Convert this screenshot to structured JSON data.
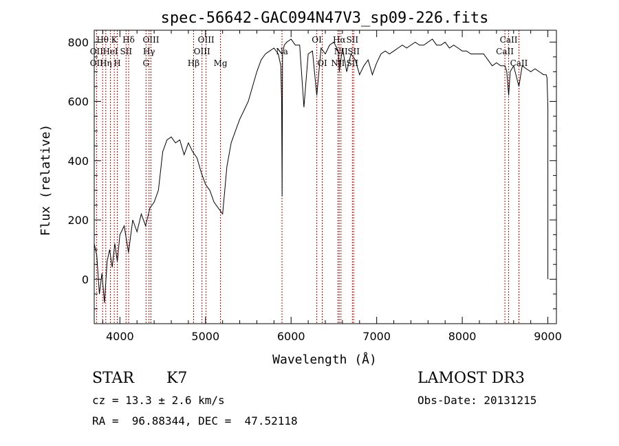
{
  "chart_data": {
    "type": "line",
    "title": "spec-56642-GAC094N47V3_sp09-226.fits",
    "xlabel": "Wavelength (Å)",
    "ylabel": "Flux (relative)",
    "xlim": [
      3700,
      9100
    ],
    "ylim": [
      -150,
      840
    ],
    "x_ticks": [
      4000,
      5000,
      6000,
      7000,
      8000,
      9000
    ],
    "y_ticks": [
      0,
      200,
      400,
      600,
      800
    ],
    "x_tick_labels": [
      "4000",
      "5000",
      "6000",
      "7000",
      "8000",
      "9000"
    ],
    "y_tick_labels": [
      "0",
      "200",
      "400",
      "600",
      "800"
    ],
    "grid": false,
    "series": [
      {
        "name": "flux",
        "x": [
          3700,
          3730,
          3760,
          3790,
          3820,
          3850,
          3880,
          3910,
          3940,
          3970,
          4000,
          4050,
          4100,
          4150,
          4200,
          4250,
          4300,
          4350,
          4400,
          4450,
          4500,
          4550,
          4600,
          4650,
          4700,
          4750,
          4800,
          4850,
          4900,
          4950,
          5000,
          5050,
          5100,
          5150,
          5200,
          5250,
          5300,
          5350,
          5400,
          5450,
          5500,
          5550,
          5600,
          5650,
          5700,
          5750,
          5800,
          5850,
          5880,
          5890,
          5895,
          5900,
          5920,
          5950,
          6000,
          6050,
          6100,
          6150,
          6200,
          6250,
          6300,
          6350,
          6400,
          6450,
          6500,
          6550,
          6563,
          6600,
          6650,
          6700,
          6750,
          6800,
          6850,
          6900,
          6950,
          7000,
          7050,
          7100,
          7150,
          7200,
          7250,
          7300,
          7350,
          7400,
          7450,
          7500,
          7550,
          7600,
          7650,
          7700,
          7750,
          7800,
          7850,
          7900,
          7950,
          8000,
          8050,
          8100,
          8150,
          8200,
          8250,
          8300,
          8350,
          8400,
          8450,
          8500,
          8520,
          8542,
          8560,
          8600,
          8662,
          8700,
          8750,
          8800,
          8850,
          8900,
          8950,
          8980,
          8990,
          9000,
          9000
        ],
        "y": [
          120,
          80,
          -50,
          20,
          -80,
          60,
          100,
          40,
          120,
          60,
          150,
          180,
          90,
          200,
          160,
          220,
          180,
          240,
          260,
          300,
          430,
          470,
          480,
          460,
          470,
          420,
          460,
          430,
          410,
          360,
          320,
          300,
          260,
          240,
          220,
          380,
          460,
          500,
          540,
          570,
          600,
          650,
          700,
          740,
          760,
          770,
          780,
          760,
          720,
          600,
          280,
          760,
          790,
          800,
          810,
          790,
          790,
          580,
          760,
          770,
          620,
          780,
          760,
          790,
          800,
          770,
          700,
          780,
          700,
          760,
          740,
          690,
          720,
          740,
          690,
          730,
          760,
          770,
          760,
          770,
          780,
          790,
          780,
          790,
          800,
          790,
          790,
          800,
          810,
          790,
          790,
          800,
          780,
          790,
          780,
          770,
          770,
          760,
          760,
          760,
          760,
          740,
          720,
          730,
          720,
          720,
          700,
          620,
          700,
          720,
          650,
          720,
          710,
          700,
          710,
          700,
          690,
          690,
          680,
          580,
          0
        ]
      }
    ],
    "lines": [
      {
        "name": "OII",
        "x": 3727
      },
      {
        "name": "Hθ",
        "x": 3798
      },
      {
        "name": "Hη",
        "x": 3835
      },
      {
        "name": "HeI",
        "x": 3889
      },
      {
        "name": "K",
        "x": 3934
      },
      {
        "name": "H",
        "x": 3969
      },
      {
        "name": "SII",
        "x": 4072
      },
      {
        "name": "Hδ",
        "x": 4102
      },
      {
        "name": "G",
        "x": 4305
      },
      {
        "name": "Hγ",
        "x": 4340
      },
      {
        "name": "OIII",
        "x": 4363
      },
      {
        "name": "Hβ",
        "x": 4861
      },
      {
        "name": "OIII",
        "x": 4959
      },
      {
        "name": "OIII",
        "x": 5007
      },
      {
        "name": "Mg",
        "x": 5175
      },
      {
        "name": "Na",
        "x": 5894
      },
      {
        "name": "OI",
        "x": 6300
      },
      {
        "name": "OI",
        "x": 6364
      },
      {
        "name": "NII",
        "x": 6548
      },
      {
        "name": "Hα",
        "x": 6563
      },
      {
        "name": "NII",
        "x": 6583
      },
      {
        "name": "SII",
        "x": 6716
      },
      {
        "name": "SII",
        "x": 6731
      },
      {
        "name": "CaII",
        "x": 8498
      },
      {
        "name": "CaII",
        "x": 8542
      },
      {
        "name": "CaII",
        "x": 8662
      }
    ],
    "labels": [
      {
        "text": "Hθ",
        "x": 3798,
        "row": 0
      },
      {
        "text": "K",
        "x": 3934,
        "row": 0
      },
      {
        "text": "Hδ",
        "x": 4102,
        "row": 0
      },
      {
        "text": "OIII",
        "x": 4363,
        "row": 0
      },
      {
        "text": "OIII",
        "x": 5007,
        "row": 0
      },
      {
        "text": "OI",
        "x": 6300,
        "row": 0
      },
      {
        "text": "Hα",
        "x": 6563,
        "row": 0
      },
      {
        "text": "SII",
        "x": 6716,
        "row": 0
      },
      {
        "text": "CaII",
        "x": 8542,
        "row": 0
      },
      {
        "text": "OII",
        "x": 3727,
        "row": 1
      },
      {
        "text": "HeI",
        "x": 3889,
        "row": 1
      },
      {
        "text": "SII",
        "x": 4072,
        "row": 1
      },
      {
        "text": "Hγ",
        "x": 4340,
        "row": 1
      },
      {
        "text": "OIII",
        "x": 4959,
        "row": 1
      },
      {
        "text": "Na",
        "x": 5894,
        "row": 1
      },
      {
        "text": "NII",
        "x": 6583,
        "row": 1
      },
      {
        "text": "SII",
        "x": 6731,
        "row": 1
      },
      {
        "text": "CaII",
        "x": 8498,
        "row": 1
      },
      {
        "text": "OII",
        "x": 3727,
        "row": 2
      },
      {
        "text": "Hη",
        "x": 3835,
        "row": 2
      },
      {
        "text": "H",
        "x": 3969,
        "row": 2
      },
      {
        "text": "G",
        "x": 4305,
        "row": 2
      },
      {
        "text": "Hβ",
        "x": 4861,
        "row": 2
      },
      {
        "text": "Mg",
        "x": 5175,
        "row": 2
      },
      {
        "text": "OI",
        "x": 6364,
        "row": 2
      },
      {
        "text": "NII",
        "x": 6548,
        "row": 2
      },
      {
        "text": "SII",
        "x": 6716,
        "row": 2
      },
      {
        "text": "CaII",
        "x": 8662,
        "row": 2
      }
    ]
  },
  "info": {
    "class": "STAR",
    "subclass": "K7",
    "survey": "LAMOST DR3",
    "cz": "cz = 13.3 ± 2.6 km/s",
    "obs_date": "Obs-Date: 20131215",
    "coords": "RA =  96.88344, DEC =  47.52118"
  },
  "colors": {
    "line_marker": "#c00000",
    "spectrum": "#000000",
    "axes": "#000000"
  }
}
